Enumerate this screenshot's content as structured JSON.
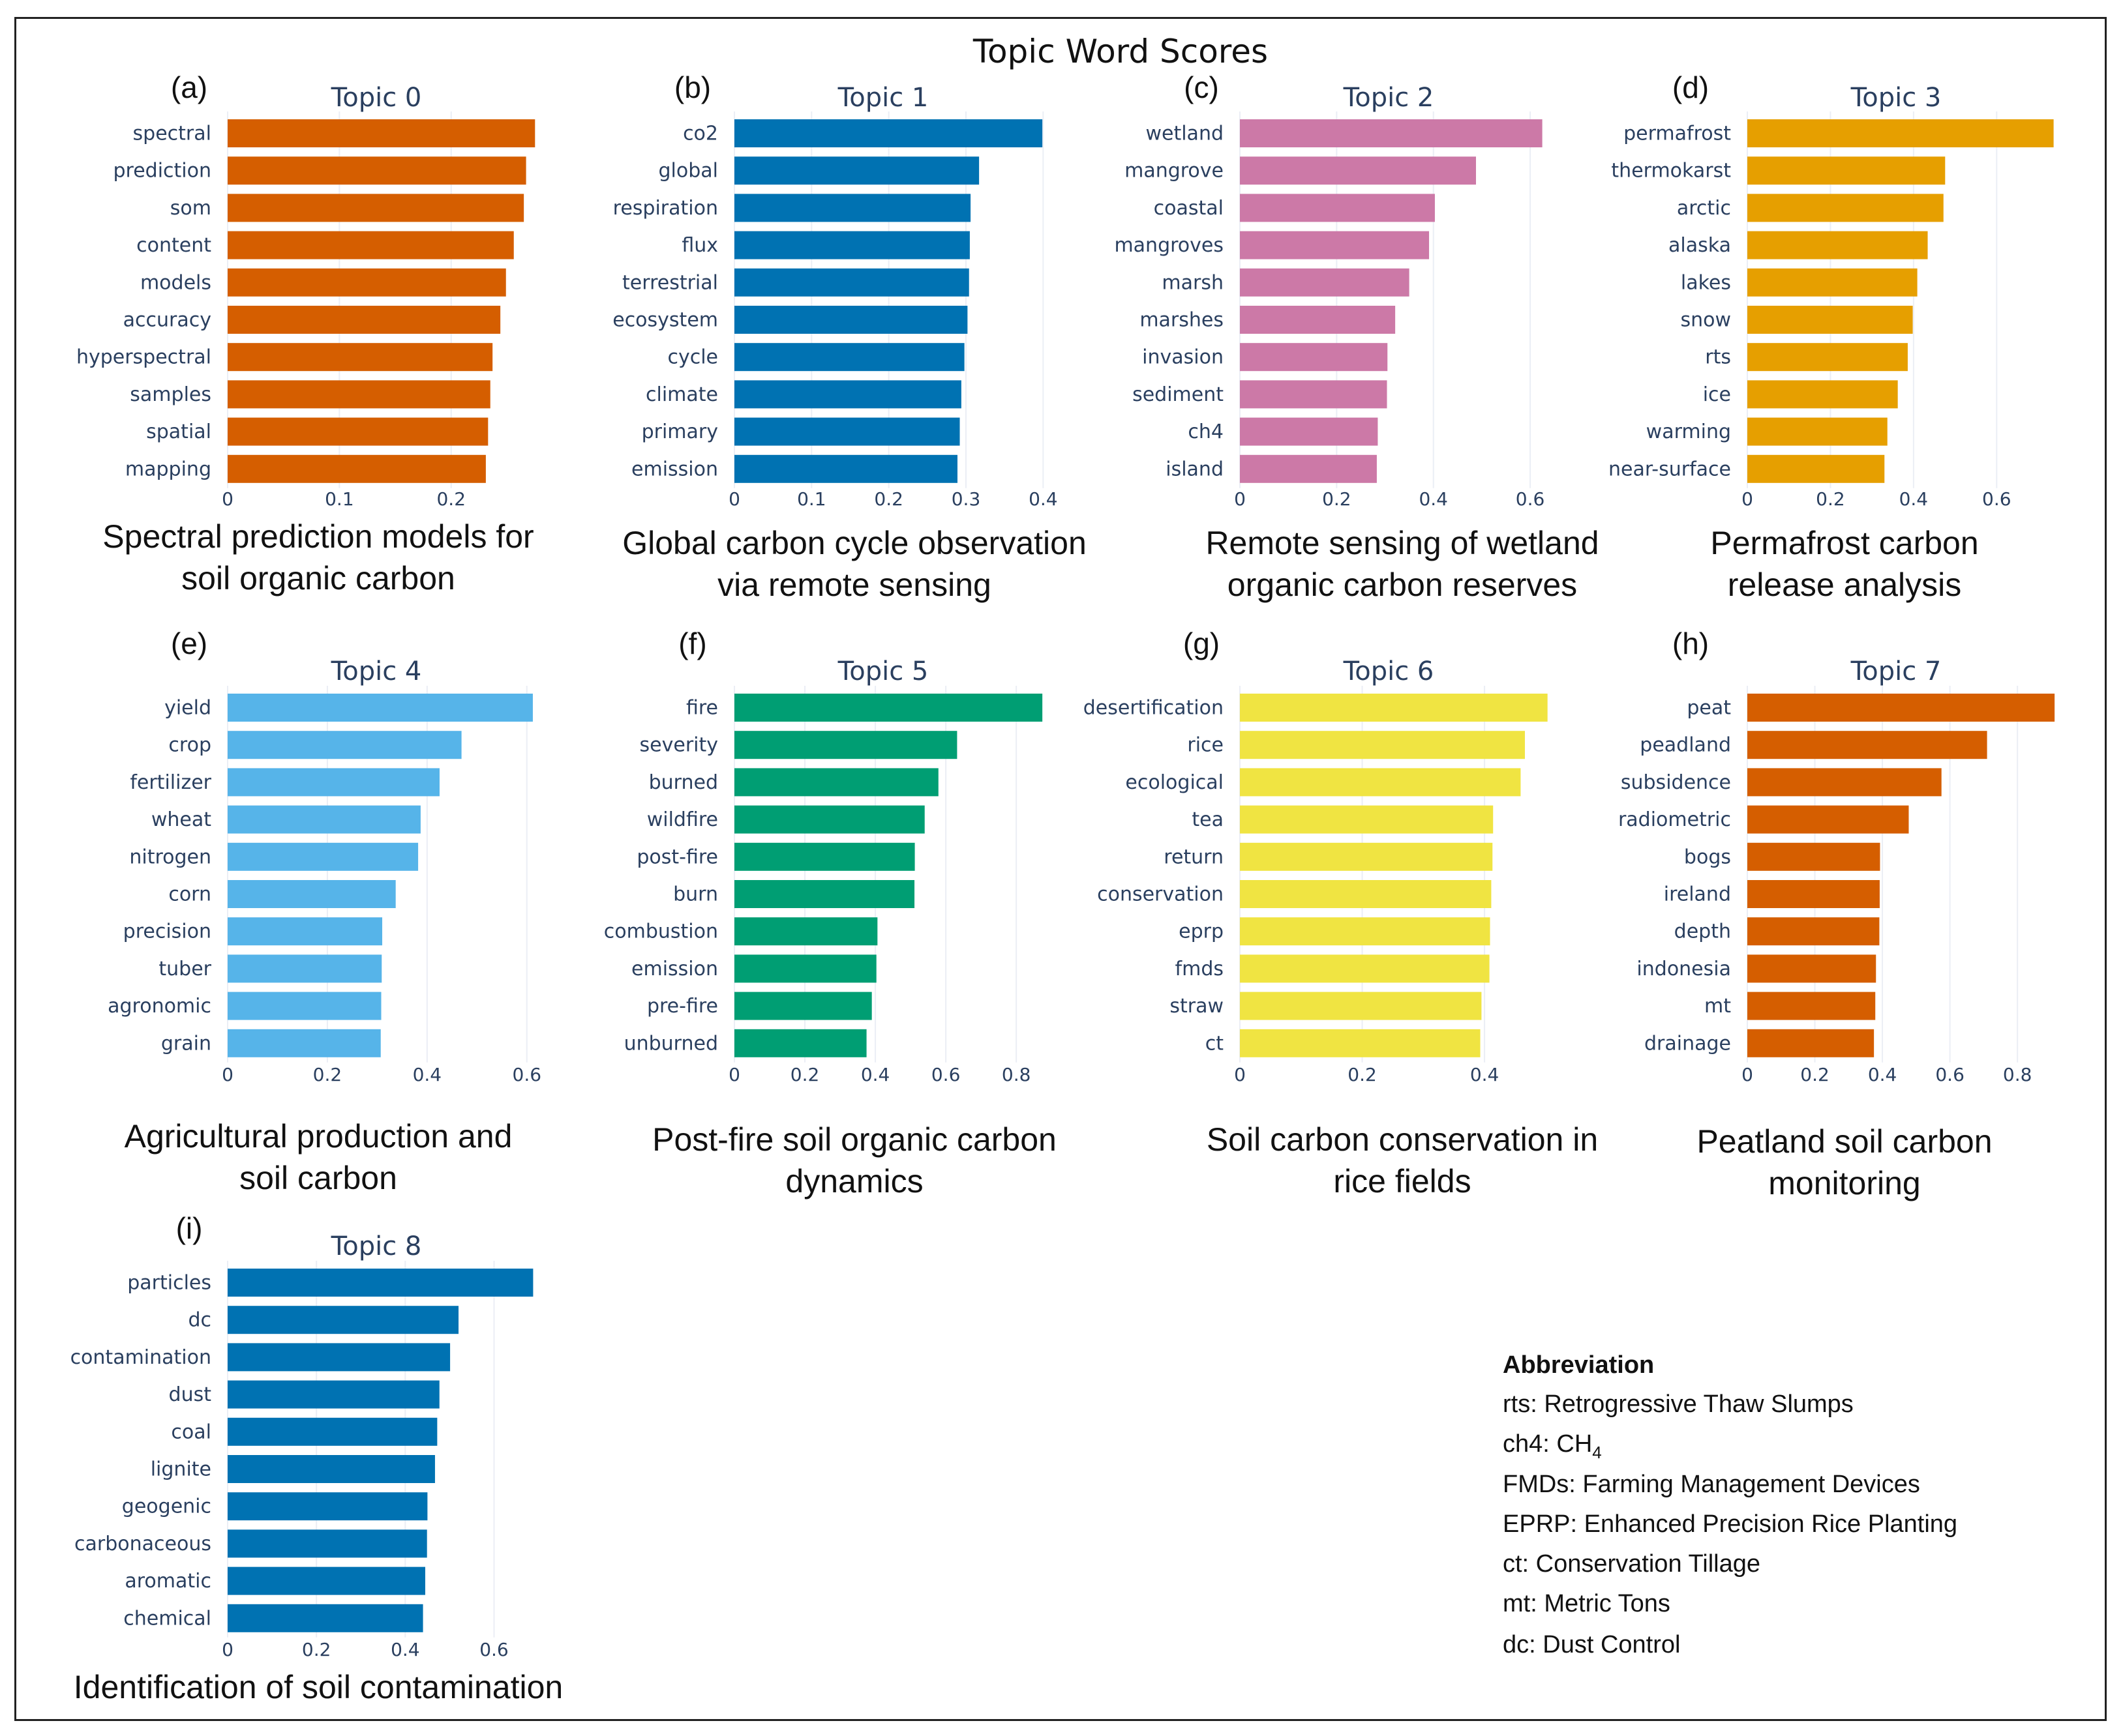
{
  "figure": {
    "title": "Topic Word Scores"
  },
  "abbreviations": {
    "title": "Abbreviation",
    "lines": [
      "rts: Retrogressive Thaw Slumps",
      "ch4: CH",
      "FMDs: Farming Management Devices",
      "EPRP: Enhanced Precision Rice Planting",
      "ct: Conservation Tillage",
      "mt: Metric Tons",
      "dc: Dust Control"
    ],
    "subscript": "4"
  },
  "chart_data": [
    {
      "type": "bar",
      "orientation": "horizontal",
      "panel": "(a)",
      "title": "Topic 0",
      "caption": [
        "Spectral prediction models for",
        "soil organic carbon"
      ],
      "color": "#d55e00",
      "categories": [
        "spectral",
        "prediction",
        "som",
        "content",
        "models",
        "accuracy",
        "hyperspectral",
        "samples",
        "spatial",
        "mapping"
      ],
      "values": [
        0.275,
        0.267,
        0.265,
        0.256,
        0.249,
        0.244,
        0.237,
        0.235,
        0.233,
        0.231
      ],
      "xlim": [
        0,
        0.29
      ],
      "ticks": [
        0,
        0.1,
        0.2
      ],
      "tick_labels": [
        "0",
        "0.1",
        "0.2"
      ]
    },
    {
      "type": "bar",
      "orientation": "horizontal",
      "panel": "(b)",
      "title": "Topic 1",
      "caption": [
        "Global carbon cycle observation",
        "via remote sensing"
      ],
      "color": "#0072b2",
      "categories": [
        "co2",
        "global",
        "respiration",
        "flux",
        "terrestrial",
        "ecosystem",
        "cycle",
        "climate",
        "primary",
        "emission"
      ],
      "values": [
        0.399,
        0.317,
        0.306,
        0.305,
        0.304,
        0.302,
        0.298,
        0.294,
        0.292,
        0.289
      ],
      "xlim": [
        0,
        0.42
      ],
      "ticks": [
        0,
        0.1,
        0.2,
        0.3,
        0.4
      ],
      "tick_labels": [
        "0",
        "0.1",
        "0.2",
        "0.3",
        "0.4"
      ]
    },
    {
      "type": "bar",
      "orientation": "horizontal",
      "panel": "(c)",
      "title": "Topic 2",
      "caption": [
        "Remote sensing of wetland",
        "organic carbon reserves"
      ],
      "color": "#cc79a7",
      "categories": [
        "wetland",
        "mangrove",
        "coastal",
        "mangroves",
        "marsh",
        "marshes",
        "invasion",
        "sediment",
        "ch4",
        "island"
      ],
      "values": [
        0.625,
        0.488,
        0.403,
        0.391,
        0.35,
        0.321,
        0.305,
        0.304,
        0.285,
        0.283
      ],
      "xlim": [
        0,
        0.67
      ],
      "ticks": [
        0,
        0.2,
        0.4,
        0.6
      ],
      "tick_labels": [
        "0",
        "0.2",
        "0.4",
        "0.6"
      ]
    },
    {
      "type": "bar",
      "orientation": "horizontal",
      "panel": "(d)",
      "title": "Topic 3",
      "caption": [
        "Permafrost carbon",
        "release analysis"
      ],
      "color": "#e69f00",
      "categories": [
        "permafrost",
        "thermokarst",
        "arctic",
        "alaska",
        "lakes",
        "snow",
        "rts",
        "ice",
        "warming",
        "near-surface"
      ],
      "values": [
        0.737,
        0.476,
        0.472,
        0.434,
        0.409,
        0.398,
        0.386,
        0.362,
        0.337,
        0.33
      ],
      "xlim": [
        0,
        0.78
      ],
      "ticks": [
        0,
        0.2,
        0.4,
        0.6
      ],
      "tick_labels": [
        "0",
        "0.2",
        "0.4",
        "0.6"
      ]
    },
    {
      "type": "bar",
      "orientation": "horizontal",
      "panel": "(e)",
      "title": "Topic 4",
      "caption": [
        "Agricultural production and",
        "soil carbon"
      ],
      "color": "#56b4e9",
      "categories": [
        "yield",
        "crop",
        "fertilizer",
        "wheat",
        "nitrogen",
        "corn",
        "precision",
        "tuber",
        "agronomic",
        "grain"
      ],
      "values": [
        0.612,
        0.469,
        0.425,
        0.387,
        0.382,
        0.337,
        0.31,
        0.309,
        0.308,
        0.307
      ],
      "xlim": [
        0,
        0.65
      ],
      "ticks": [
        0,
        0.2,
        0.4,
        0.6
      ],
      "tick_labels": [
        "0",
        "0.2",
        "0.4",
        "0.6"
      ]
    },
    {
      "type": "bar",
      "orientation": "horizontal",
      "panel": "(f)",
      "title": "Topic 5",
      "caption": [
        "Post-fire soil organic carbon",
        "dynamics"
      ],
      "color": "#009e73",
      "categories": [
        "fire",
        "severity",
        "burned",
        "wildfire",
        "post-fire",
        "burn",
        "combustion",
        "emission",
        "pre-fire",
        "unburned"
      ],
      "values": [
        0.874,
        0.632,
        0.579,
        0.54,
        0.512,
        0.511,
        0.406,
        0.403,
        0.39,
        0.375
      ],
      "xlim": [
        0,
        0.92
      ],
      "ticks": [
        0,
        0.2,
        0.4,
        0.6,
        0.8
      ],
      "tick_labels": [
        "0",
        "0.2",
        "0.4",
        "0.6",
        "0.8"
      ]
    },
    {
      "type": "bar",
      "orientation": "horizontal",
      "panel": "(g)",
      "title": "Topic 6",
      "caption": [
        "Soil carbon conservation in",
        "rice fields"
      ],
      "color": "#f0e442",
      "categories": [
        "desertification",
        "rice",
        "ecological",
        "tea",
        "return",
        "conservation",
        "eprp",
        "fmds",
        "straw",
        "ct"
      ],
      "values": [
        0.503,
        0.466,
        0.459,
        0.414,
        0.413,
        0.411,
        0.409,
        0.408,
        0.395,
        0.393
      ],
      "xlim": [
        0,
        0.53
      ],
      "ticks": [
        0,
        0.2,
        0.4
      ],
      "tick_labels": [
        "0",
        "0.2",
        "0.4"
      ]
    },
    {
      "type": "bar",
      "orientation": "horizontal",
      "panel": "(h)",
      "title": "Topic 7",
      "caption": [
        "Peatland soil carbon",
        "monitoring"
      ],
      "color": "#d55e00",
      "categories": [
        "peat",
        "peadland",
        "subsidence",
        "radiometric",
        "bogs",
        "ireland",
        "depth",
        "indonesia",
        "mt",
        "drainage"
      ],
      "values": [
        0.91,
        0.71,
        0.575,
        0.478,
        0.393,
        0.392,
        0.391,
        0.381,
        0.379,
        0.375
      ],
      "xlim": [
        0,
        0.96
      ],
      "ticks": [
        0,
        0.2,
        0.4,
        0.6,
        0.8
      ],
      "tick_labels": [
        "0",
        "0.2",
        "0.4",
        "0.6",
        "0.8"
      ]
    },
    {
      "type": "bar",
      "orientation": "horizontal",
      "panel": "(i)",
      "title": "Topic 8",
      "caption": [
        "Identification of soil contamination"
      ],
      "color": "#0072b2",
      "categories": [
        "particles",
        "dc",
        "contamination",
        "dust",
        "coal",
        "lignite",
        "geogenic",
        "carbonaceous",
        "aromatic",
        "chemical"
      ],
      "values": [
        0.688,
        0.52,
        0.501,
        0.477,
        0.472,
        0.467,
        0.45,
        0.449,
        0.445,
        0.44
      ],
      "xlim": [
        0,
        0.73
      ],
      "ticks": [
        0,
        0.2,
        0.4,
        0.6
      ],
      "tick_labels": [
        "0",
        "0.2",
        "0.4",
        "0.6"
      ]
    }
  ]
}
